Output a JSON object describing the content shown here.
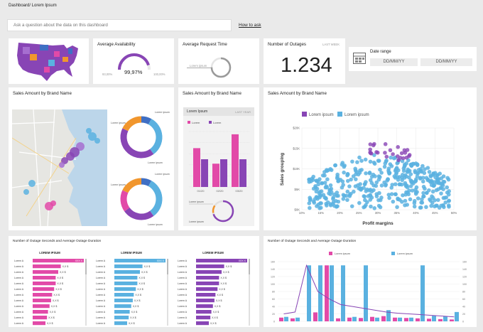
{
  "header": {
    "breadcrumb": "Dashboard/ Lorem Ipsum"
  },
  "qa": {
    "placeholder": "Ask a question about the data on this dashboard",
    "how_to_ask": "How to ask"
  },
  "availability": {
    "title": "Average Availability",
    "value": "99,97%",
    "min": "93,00%",
    "max": "100,00%",
    "fraction": 0.9
  },
  "request_time": {
    "title": "Average Request Time",
    "lorem": "Lorem ipsum",
    "fraction": 0.75
  },
  "outages": {
    "title": "Number of Outages",
    "period": "LAST WEEK",
    "value": "1.234"
  },
  "date_range": {
    "title": "Date range",
    "from": "DD/MM/YY",
    "to": "DD/MM/YY"
  },
  "map_card": {
    "title": "Sales Amount by Brand Name",
    "donut1": {
      "labels": [
        "Lorem ipsum",
        "Lorem ipsum",
        "Lorem ipsum"
      ],
      "slices": [
        {
          "value": 8,
          "color": "#3f6fc4"
        },
        {
          "value": 32,
          "color": "#5ab1e0"
        },
        {
          "value": 42,
          "color": "#8845b5"
        },
        {
          "value": 18,
          "color": "#f1962d"
        }
      ]
    },
    "donut2": {
      "labels": [
        "Lorem ipsum",
        "Lorem ipsum",
        "Lorem ipsum"
      ],
      "slices": [
        {
          "value": 8,
          "color": "#3f6fc4"
        },
        {
          "value": 32,
          "color": "#5ab1e0"
        },
        {
          "value": 25,
          "color": "#8845b5"
        },
        {
          "value": 17,
          "color": "#e24aa8"
        },
        {
          "value": 18,
          "color": "#f1962d"
        }
      ]
    }
  },
  "bar_card": {
    "title": "Sales Amount by Brand Name",
    "panel_title": "Lorem Ipsum",
    "panel_period": "LAST YEAR",
    "legend": [
      "Lorem",
      "Lorem"
    ],
    "colors": [
      "#e24aa8",
      "#8845b5"
    ],
    "groups": [
      {
        "label": "01/20",
        "a": 0.7,
        "b": 0.5
      },
      {
        "label": "02/20",
        "a": 0.42,
        "b": 0.5
      },
      {
        "label": "03/20",
        "a": 0.95,
        "b": 0.5
      }
    ],
    "mini_donut": {
      "label1": "Lorem ipsum",
      "label2": "Lorem ipsum",
      "fraction": 0.7
    }
  },
  "chart_data": [
    {
      "type": "scatter",
      "title": "Sales Amount by Brand Name",
      "series": [
        {
          "name": "Lorem ipsum",
          "color": "#8845b5"
        },
        {
          "name": "Lorem ipsum",
          "color": "#5ab1e0"
        }
      ],
      "xlabel": "Profit margins",
      "ylabel": "Sales grouping",
      "xticks": [
        "10%",
        "15%",
        "20%",
        "25%",
        "30%",
        "35%",
        "40%",
        "45%",
        "50%"
      ],
      "yticks": [
        "$0K",
        "$5K",
        "$10K",
        "$15K",
        "$20K"
      ],
      "xlim": [
        10,
        50
      ],
      "ylim": [
        0,
        20000
      ]
    },
    {
      "type": "bar",
      "title": "Number of Outage Seconds and Average Outage Duration",
      "legend": [
        "Lorem ipsum",
        "Lorem ipsum"
      ],
      "yticks": [
        "0",
        "20",
        "40",
        "60",
        "80",
        "100",
        "120",
        "140",
        "160"
      ],
      "ylim": [
        0,
        160
      ],
      "pink": [
        10,
        8,
        0,
        24,
        150,
        8,
        10,
        9,
        12,
        14,
        10,
        9,
        8,
        7,
        6,
        5
      ],
      "blue": [
        12,
        10,
        150,
        150,
        150,
        150,
        12,
        150,
        10,
        30,
        10,
        10,
        150,
        15,
        14,
        25
      ],
      "line": [
        20,
        25,
        150,
        80,
        60,
        45,
        40,
        35,
        30,
        25,
        22,
        20,
        18,
        16,
        14,
        12
      ]
    }
  ],
  "bottom_left": {
    "title": "Number of Outage Seconds and Average Outage Duration",
    "columns": [
      {
        "header": "LOREM IPSUM",
        "color": "#e24aa8",
        "first": "XXX X",
        "rest": "X,X $"
      },
      {
        "header": "LOREM IPSUM",
        "color": "#5ab1e0",
        "first": "XXX X",
        "rest": "X,X $"
      },
      {
        "header": "LOREM IPSUM",
        "color": "#8845b5",
        "first": "XXX X",
        "rest": "X,X $"
      }
    ],
    "row_label": "Lorem A",
    "rows": [
      1.0,
      0.55,
      0.5,
      0.45,
      0.45,
      0.42,
      0.38,
      0.36,
      0.33,
      0.3,
      0.28,
      0.25
    ]
  }
}
